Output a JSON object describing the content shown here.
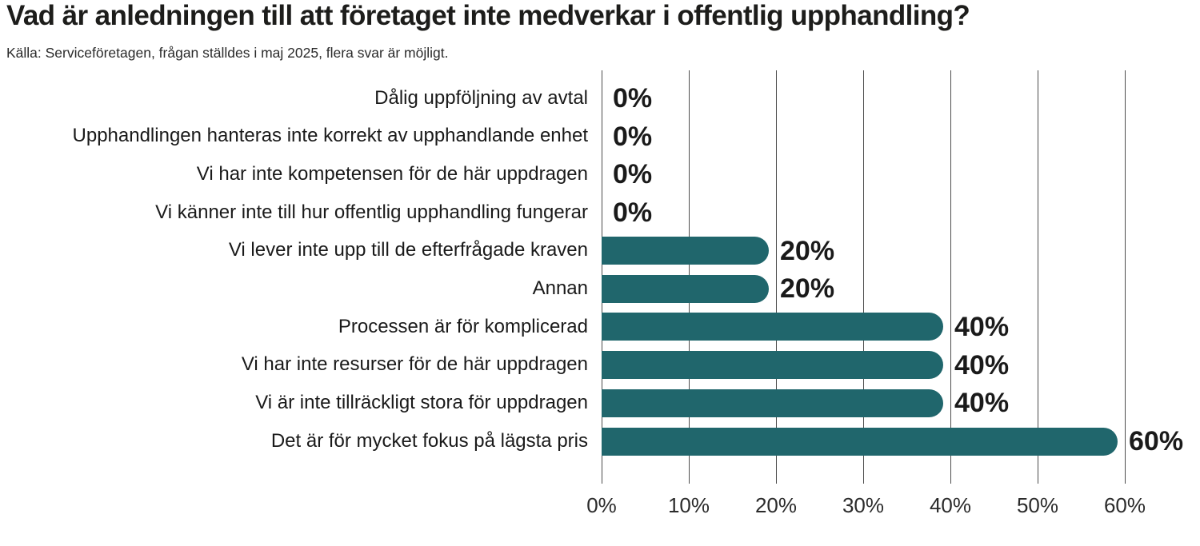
{
  "header": {
    "title": "Vad är anledningen till att företaget inte medverkar i offentlig upphandling?",
    "subtitle": "Källa: Serviceföretagen, frågan ställdes i maj 2025, flera svar är möjligt."
  },
  "chart_data": {
    "type": "bar",
    "orientation": "horizontal",
    "title": "Vad är anledningen till att företaget inte medverkar i offentlig upphandling?",
    "subtitle": "Källa: Serviceföretagen, frågan ställdes i maj 2025, flera svar är möjligt.",
    "categories": [
      "Dålig uppföljning av avtal",
      "Upphandlingen hanteras inte korrekt av upphandlande enhet",
      "Vi har inte kompetensen för de här uppdragen",
      "Vi känner inte till hur offentlig upphandling fungerar",
      "Vi lever inte upp till de efterfrågade kraven",
      "Annan",
      "Processen är för komplicerad",
      "Vi har inte resurser för de här uppdragen",
      "Vi är inte tillräckligt stora för uppdragen",
      "Det är för mycket fokus på lägsta pris"
    ],
    "values": [
      0,
      0,
      0,
      0,
      20,
      20,
      40,
      40,
      40,
      60
    ],
    "value_labels": [
      "0%",
      "0%",
      "0%",
      "0%",
      "20%",
      "20%",
      "40%",
      "40%",
      "40%",
      "60%"
    ],
    "xlabel": "",
    "ylabel": "",
    "xlim": [
      0,
      60
    ],
    "x_tick_values": [
      0,
      10,
      20,
      30,
      40,
      50,
      60
    ],
    "x_tick_labels": [
      "0%",
      "10%",
      "20%",
      "30%",
      "40%",
      "50%",
      "60%"
    ],
    "grid": "vertical-gridlines-on",
    "legend": "none",
    "bar_color": "#20666c",
    "gridline_color": "#4d4d4d",
    "value_label_color": "#1a1a1a",
    "category_label_color": "#1a1a1a",
    "tick_label_color": "#2b2b2b"
  }
}
